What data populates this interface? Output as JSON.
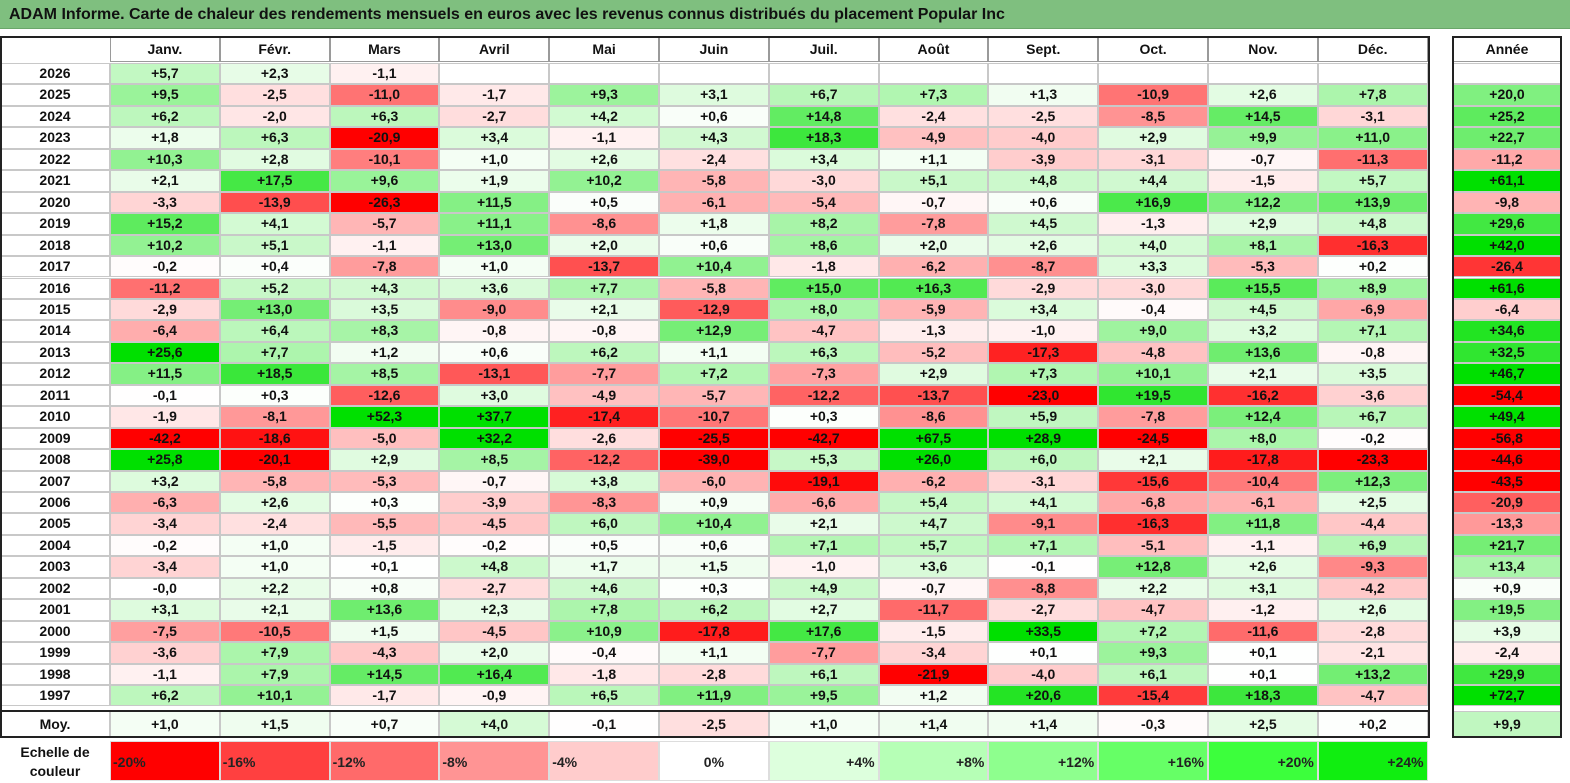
{
  "title": "ADAM Informe. Carte de chaleur des rendements mensuels en euros avec les revenus connus distribués du placement Popular Inc",
  "chart_data": {
    "type": "heatmap",
    "title": "ADAM Informe. Carte de chaleur des rendements mensuels en euros avec les revenus connus distribués du placement Popular Inc",
    "columns": [
      "Janv.",
      "Févr.",
      "Mars",
      "Avril",
      "Mai",
      "Juin",
      "Juil.",
      "Août",
      "Sept.",
      "Oct.",
      "Nov.",
      "Déc."
    ],
    "year_column_label": "Année",
    "rows": [
      {
        "label": "2026",
        "values": [
          "+5,7",
          "+2,3",
          "-1,1",
          "",
          "",
          "",
          "",
          "",
          "",
          "",
          "",
          ""
        ],
        "year": ""
      },
      {
        "label": "2025",
        "values": [
          "+9,5",
          "-2,5",
          "-11,0",
          "-1,7",
          "+9,3",
          "+3,1",
          "+6,7",
          "+7,3",
          "+1,3",
          "-10,9",
          "+2,6",
          "+7,8"
        ],
        "year": "+20,0"
      },
      {
        "label": "2024",
        "values": [
          "+6,2",
          "-2,0",
          "+6,3",
          "-2,7",
          "+4,2",
          "+0,6",
          "+14,8",
          "-2,4",
          "-2,5",
          "-8,5",
          "+14,5",
          "-3,1"
        ],
        "year": "+25,2"
      },
      {
        "label": "2023",
        "values": [
          "+1,8",
          "+6,3",
          "-20,9",
          "+3,4",
          "-1,1",
          "+4,3",
          "+18,3",
          "-4,9",
          "-4,0",
          "+2,9",
          "+9,9",
          "+11,0"
        ],
        "year": "+22,7"
      },
      {
        "label": "2022",
        "values": [
          "+10,3",
          "+2,8",
          "-10,1",
          "+1,0",
          "+2,6",
          "-2,4",
          "+3,4",
          "+1,1",
          "-3,9",
          "-3,1",
          "-0,7",
          "-11,3"
        ],
        "year": "-11,2"
      },
      {
        "label": "2021",
        "values": [
          "+2,1",
          "+17,5",
          "+9,6",
          "+1,9",
          "+10,2",
          "-5,8",
          "-3,0",
          "+5,1",
          "+4,8",
          "+4,4",
          "-1,5",
          "+5,7"
        ],
        "year": "+61,1"
      },
      {
        "label": "2020",
        "values": [
          "-3,3",
          "-13,9",
          "-26,3",
          "+11,5",
          "+0,5",
          "-6,1",
          "-5,4",
          "-0,7",
          "+0,6",
          "+16,9",
          "+12,2",
          "+13,9"
        ],
        "year": "-9,8"
      },
      {
        "label": "2019",
        "values": [
          "+15,2",
          "+4,1",
          "-5,7",
          "+11,1",
          "-8,6",
          "+1,8",
          "+8,2",
          "-7,8",
          "+4,5",
          "-1,3",
          "+2,9",
          "+4,8"
        ],
        "year": "+29,6"
      },
      {
        "label": "2018",
        "values": [
          "+10,2",
          "+5,1",
          "-1,1",
          "+13,0",
          "+2,0",
          "+0,6",
          "+8,6",
          "+2,0",
          "+2,6",
          "+4,0",
          "+8,1",
          "-16,3"
        ],
        "year": "+42,0"
      },
      {
        "label": "2017",
        "values": [
          "-0,2",
          "+0,4",
          "-7,8",
          "+1,0",
          "-13,7",
          "+10,4",
          "-1,8",
          "-6,2",
          "-8,7",
          "+3,3",
          "-5,3",
          "+0,2"
        ],
        "year": "-26,4"
      },
      {
        "label": "2016",
        "values": [
          "-11,2",
          "+5,2",
          "+4,3",
          "+3,6",
          "+7,7",
          "-5,8",
          "+15,0",
          "+16,3",
          "-2,9",
          "-3,0",
          "+15,5",
          "+8,9"
        ],
        "year": "+61,6"
      },
      {
        "label": "2015",
        "values": [
          "-2,9",
          "+13,0",
          "+3,5",
          "-9,0",
          "+2,1",
          "-12,9",
          "+8,0",
          "-5,9",
          "+3,4",
          "-0,4",
          "+4,5",
          "-6,9"
        ],
        "year": "-6,4"
      },
      {
        "label": "2014",
        "values": [
          "-6,4",
          "+6,4",
          "+8,3",
          "-0,8",
          "-0,8",
          "+12,9",
          "-4,7",
          "-1,3",
          "-1,0",
          "+9,0",
          "+3,2",
          "+7,1"
        ],
        "year": "+34,6"
      },
      {
        "label": "2013",
        "values": [
          "+25,6",
          "+7,7",
          "+1,2",
          "+0,6",
          "+6,2",
          "+1,1",
          "+6,3",
          "-5,2",
          "-17,3",
          "-4,8",
          "+13,6",
          "-0,8"
        ],
        "year": "+32,5"
      },
      {
        "label": "2012",
        "values": [
          "+11,5",
          "+18,5",
          "+8,5",
          "-13,1",
          "-7,7",
          "+7,2",
          "-7,3",
          "+2,9",
          "+7,3",
          "+10,1",
          "+2,1",
          "+3,5"
        ],
        "year": "+46,7"
      },
      {
        "label": "2011",
        "values": [
          "-0,1",
          "+0,3",
          "-12,6",
          "+3,0",
          "-4,9",
          "-5,7",
          "-12,2",
          "-13,7",
          "-23,0",
          "+19,5",
          "-16,2",
          "-3,6"
        ],
        "year": "-54,4"
      },
      {
        "label": "2010",
        "values": [
          "-1,9",
          "-8,1",
          "+52,3",
          "+37,7",
          "-17,4",
          "-10,7",
          "+0,3",
          "-8,6",
          "+5,9",
          "-7,8",
          "+12,4",
          "+6,7"
        ],
        "year": "+49,4"
      },
      {
        "label": "2009",
        "values": [
          "-42,2",
          "-18,6",
          "-5,0",
          "+32,2",
          "-2,6",
          "-25,5",
          "-42,7",
          "+67,5",
          "+28,9",
          "-24,5",
          "+8,0",
          "-0,2"
        ],
        "year": "-56,8"
      },
      {
        "label": "2008",
        "values": [
          "+25,8",
          "-20,1",
          "+2,9",
          "+8,5",
          "-12,2",
          "-39,0",
          "+5,3",
          "+26,0",
          "+6,0",
          "+2,1",
          "-17,8",
          "-23,3"
        ],
        "year": "-44,6"
      },
      {
        "label": "2007",
        "values": [
          "+3,2",
          "-5,8",
          "-5,3",
          "-0,7",
          "+3,8",
          "-6,0",
          "-19,1",
          "-6,2",
          "-3,1",
          "-15,6",
          "-10,4",
          "+12,3"
        ],
        "year": "-43,5"
      },
      {
        "label": "2006",
        "values": [
          "-6,3",
          "+2,6",
          "+0,3",
          "-3,9",
          "-8,3",
          "+0,9",
          "-6,6",
          "+5,4",
          "+4,1",
          "-6,8",
          "-6,1",
          "+2,5"
        ],
        "year": "-20,9"
      },
      {
        "label": "2005",
        "values": [
          "-3,4",
          "-2,4",
          "-5,5",
          "-4,5",
          "+6,0",
          "+10,4",
          "+2,1",
          "+4,7",
          "-9,1",
          "-16,3",
          "+11,8",
          "-4,4"
        ],
        "year": "-13,3"
      },
      {
        "label": "2004",
        "values": [
          "-0,2",
          "+1,0",
          "-1,5",
          "-0,2",
          "+0,5",
          "+0,6",
          "+7,1",
          "+5,7",
          "+7,1",
          "-5,1",
          "-1,1",
          "+6,9"
        ],
        "year": "+21,7"
      },
      {
        "label": "2003",
        "values": [
          "-3,4",
          "+1,0",
          "+0,1",
          "+4,8",
          "+1,7",
          "+1,5",
          "-1,0",
          "+3,6",
          "-0,1",
          "+12,8",
          "+2,6",
          "-9,3"
        ],
        "year": "+13,4"
      },
      {
        "label": "2002",
        "values": [
          "-0,0",
          "+2,2",
          "+0,8",
          "-2,7",
          "+4,6",
          "+0,3",
          "+4,9",
          "-0,7",
          "-8,8",
          "+2,2",
          "+3,1",
          "-4,2"
        ],
        "year": "+0,9"
      },
      {
        "label": "2001",
        "values": [
          "+3,1",
          "+2,1",
          "+13,6",
          "+2,3",
          "+7,8",
          "+6,2",
          "+2,7",
          "-11,7",
          "-2,7",
          "-4,7",
          "-1,2",
          "+2,6"
        ],
        "year": "+19,5"
      },
      {
        "label": "2000",
        "values": [
          "-7,5",
          "-10,5",
          "+1,5",
          "-4,5",
          "+10,9",
          "-17,8",
          "+17,6",
          "-1,5",
          "+33,5",
          "+7,2",
          "-11,6",
          "-2,8"
        ],
        "year": "+3,9"
      },
      {
        "label": "1999",
        "values": [
          "-3,6",
          "+7,9",
          "-4,3",
          "+2,0",
          "-0,4",
          "+1,1",
          "-7,7",
          "-3,4",
          "+0,1",
          "+9,3",
          "+0,1",
          "-2,1"
        ],
        "year": "-2,4"
      },
      {
        "label": "1998",
        "values": [
          "-1,1",
          "+7,9",
          "+14,5",
          "+16,4",
          "-1,8",
          "-2,8",
          "+6,1",
          "-21,9",
          "-4,0",
          "+6,1",
          "+0,1",
          "+13,2"
        ],
        "year": "+29,9"
      },
      {
        "label": "1997",
        "values": [
          "+6,2",
          "+10,1",
          "-1,7",
          "-0,9",
          "+6,5",
          "+11,9",
          "+9,5",
          "+1,2",
          "+20,6",
          "-15,4",
          "+18,3",
          "-4,7"
        ],
        "year": "+72,7"
      }
    ],
    "average": {
      "label": "Moy.",
      "values": [
        "+1,0",
        "+1,5",
        "+0,7",
        "+4,0",
        "-0,1",
        "-2,5",
        "+1,0",
        "+1,4",
        "+1,4",
        "-0,3",
        "+2,5",
        "+0,2"
      ],
      "year": "+9,9"
    },
    "color_scale": {
      "label": "Echelle de couleur",
      "stops": [
        "-20%",
        "-16%",
        "-12%",
        "-8%",
        "-4%",
        "0%",
        "+4%",
        "+8%",
        "+12%",
        "+16%",
        "+20%",
        "+24%"
      ],
      "values": [
        -20,
        -16,
        -12,
        -8,
        -4,
        0,
        4,
        8,
        12,
        16,
        20,
        24
      ],
      "colors": [
        "#ff0000",
        "#ff4040",
        "#ff6a6a",
        "#ff9494",
        "#ffcccc",
        "#ffffff",
        "#ddffdd",
        "#b6ffb6",
        "#8eff8e",
        "#66ff66",
        "#3cff3c",
        "#10ee10"
      ]
    }
  }
}
